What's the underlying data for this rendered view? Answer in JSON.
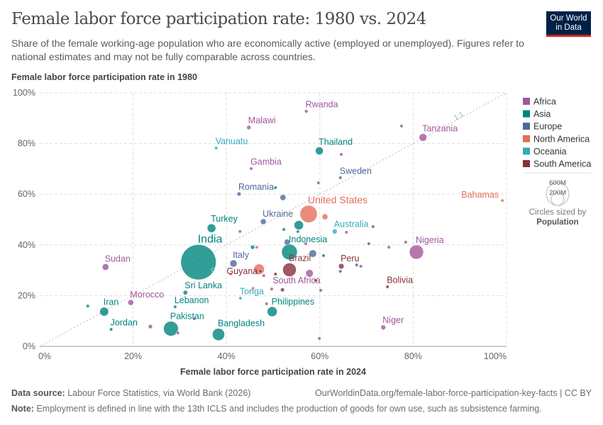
{
  "header": {
    "title": "Female labor force participation rate: 1980 vs. 2024",
    "subtitle": "Share of the female working-age population who are economically active (employed or unemployed). Figures refer to national estimates and may not be fully comparable across countries.",
    "logo": "Our World in Data"
  },
  "footer": {
    "source_label": "Data source:",
    "source": "Labour Force Statistics, via World Bank (2026)",
    "url": "OurWorldinData.org/female-labor-force-participation-key-facts | CC BY",
    "note_label": "Note:",
    "note": "Employment is defined in line with the 13th ICLS and includes the production of goods for own use, such as subsistence farming."
  },
  "chart_data": {
    "type": "scatter",
    "xlabel": "Female labor force participation rate in 2024",
    "ylabel": "Female labor force participation rate in 1980",
    "xlim": [
      0,
      100
    ],
    "ylim": [
      0,
      100
    ],
    "x_ticks": [
      "0%",
      "20%",
      "40%",
      "60%",
      "80%",
      "100%"
    ],
    "y_ticks": [
      "0%",
      "20%",
      "40%",
      "60%",
      "80%",
      "100%"
    ],
    "grid": true,
    "reference_line": "1:1",
    "legend_position": "right",
    "size_legend": {
      "title": "Circles sized by",
      "variable": "Population",
      "labels": [
        "600M",
        "200M"
      ]
    },
    "continents": [
      {
        "name": "Africa",
        "color": "#a2559c"
      },
      {
        "name": "Asia",
        "color": "#00847e"
      },
      {
        "name": "Europe",
        "color": "#4c6a9c"
      },
      {
        "name": "North America",
        "color": "#e56e5a"
      },
      {
        "name": "Oceania",
        "color": "#38aaba"
      },
      {
        "name": "South America",
        "color": "#883039"
      }
    ],
    "points": [
      {
        "name": "India",
        "continent": "Asia",
        "x": 34.0,
        "y": 33.2,
        "pop": 1450
      },
      {
        "name": "Bangladesh",
        "continent": "Asia",
        "x": 38.3,
        "y": 4.7,
        "pop": 173
      },
      {
        "name": "Pakistan",
        "continent": "Asia",
        "x": 28.1,
        "y": 7.0,
        "pop": 251
      },
      {
        "name": "Iran",
        "continent": "Asia",
        "x": 13.8,
        "y": 13.7,
        "pop": 91
      },
      {
        "name": "Jordan",
        "continent": "Asia",
        "x": 15.3,
        "y": 6.7,
        "pop": 11
      },
      {
        "name": "Sudan",
        "continent": "Africa",
        "x": 14.1,
        "y": 31.3,
        "pop": 50
      },
      {
        "name": "Morocco",
        "continent": "Africa",
        "x": 19.5,
        "y": 17.3,
        "pop": 38
      },
      {
        "name": "Lebanon",
        "continent": "Asia",
        "x": 29.0,
        "y": 15.6,
        "pop": 6
      },
      {
        "name": "Sri Lanka",
        "continent": "Asia",
        "x": 31.2,
        "y": 21.2,
        "pop": 23
      },
      {
        "name": "Turkey",
        "continent": "Asia",
        "x": 36.8,
        "y": 46.6,
        "pop": 87
      },
      {
        "name": "Italy",
        "continent": "Europe",
        "x": 41.5,
        "y": 32.7,
        "pop": 59
      },
      {
        "name": "Guyana",
        "continent": "South America",
        "x": 47.3,
        "y": 29.6,
        "pop": 1
      },
      {
        "name": "Tonga",
        "continent": "Oceania",
        "x": 43.0,
        "y": 19.0,
        "pop": 1
      },
      {
        "name": "Ukraine",
        "continent": "Europe",
        "x": 47.9,
        "y": 49.2,
        "pop": 38
      },
      {
        "name": "Romania",
        "continent": "Europe",
        "x": 42.7,
        "y": 60.1,
        "pop": 19
      },
      {
        "name": "Malawi",
        "continent": "Africa",
        "x": 44.8,
        "y": 86.3,
        "pop": 21
      },
      {
        "name": "Vanuatu",
        "continent": "Oceania",
        "x": 37.8,
        "y": 78.2,
        "pop": 1
      },
      {
        "name": "Gambia",
        "continent": "Africa",
        "x": 45.3,
        "y": 70.1,
        "pop": 3
      },
      {
        "name": "Rwanda",
        "continent": "Africa",
        "x": 57.1,
        "y": 92.7,
        "pop": 14
      },
      {
        "name": "Thailand",
        "continent": "Asia",
        "x": 59.9,
        "y": 77.1,
        "pop": 72
      },
      {
        "name": "Sweden",
        "continent": "Europe",
        "x": 64.4,
        "y": 66.5,
        "pop": 10
      },
      {
        "name": "Tanzania",
        "continent": "Africa",
        "x": 82.1,
        "y": 82.4,
        "pop": 68
      },
      {
        "name": "Bahamas",
        "continent": "North America",
        "x": 99.1,
        "y": 57.5,
        "pop": 1
      },
      {
        "name": "United States",
        "continent": "North America",
        "x": 57.6,
        "y": 52.2,
        "pop": 345
      },
      {
        "name": "Australia",
        "continent": "Oceania",
        "x": 63.2,
        "y": 45.3,
        "pop": 27
      },
      {
        "name": "Indonesia",
        "continent": "Asia",
        "x": 53.5,
        "y": 37.2,
        "pop": 283
      },
      {
        "name": "Brazil",
        "continent": "South America",
        "x": 53.5,
        "y": 30.2,
        "pop": 212
      },
      {
        "name": "Peru",
        "continent": "South America",
        "x": 64.6,
        "y": 31.6,
        "pop": 34
      },
      {
        "name": "South Africa",
        "continent": "Africa",
        "x": 57.8,
        "y": 28.8,
        "pop": 64
      },
      {
        "name": "Philippines",
        "continent": "Asia",
        "x": 49.8,
        "y": 13.7,
        "pop": 115
      },
      {
        "name": "Bolivia",
        "continent": "South America",
        "x": 74.5,
        "y": 23.5,
        "pop": 12
      },
      {
        "name": "Nigeria",
        "continent": "Africa",
        "x": 80.7,
        "y": 37.2,
        "pop": 232
      },
      {
        "name": "Niger",
        "continent": "Africa",
        "x": 73.6,
        "y": 7.5,
        "pop": 27
      },
      {
        "name": "",
        "continent": "Asia",
        "x": 55.5,
        "y": 47.8,
        "pop": 100
      },
      {
        "name": "",
        "continent": "Africa",
        "x": 77.5,
        "y": 86.9,
        "pop": 4
      },
      {
        "name": "",
        "continent": "Africa",
        "x": 64.6,
        "y": 75.7,
        "pop": 4
      },
      {
        "name": "",
        "continent": "Africa",
        "x": 59.7,
        "y": 64.5,
        "pop": 3
      },
      {
        "name": "",
        "continent": "Asia",
        "x": 50.5,
        "y": 62.6,
        "pop": 3
      },
      {
        "name": "",
        "continent": "Europe",
        "x": 52.1,
        "y": 58.7,
        "pop": 40
      },
      {
        "name": "",
        "continent": "North America",
        "x": 61.1,
        "y": 51.1,
        "pop": 40
      },
      {
        "name": "",
        "continent": "Europe",
        "x": 71.4,
        "y": 47.2,
        "pop": 5
      },
      {
        "name": "",
        "continent": "Africa",
        "x": 65.7,
        "y": 45.0,
        "pop": 5
      },
      {
        "name": "",
        "continent": "Europe",
        "x": 55.3,
        "y": 45.3,
        "pop": 10
      },
      {
        "name": "",
        "continent": "Asia",
        "x": 52.3,
        "y": 46.1,
        "pop": 3
      },
      {
        "name": "",
        "continent": "Africa",
        "x": 42.9,
        "y": 45.3,
        "pop": 3
      },
      {
        "name": "",
        "continent": "Asia",
        "x": 45.6,
        "y": 39.1,
        "pop": 20
      },
      {
        "name": "",
        "continent": "North America",
        "x": 46.5,
        "y": 39.1,
        "pop": 3
      },
      {
        "name": "",
        "continent": "Europe",
        "x": 53.0,
        "y": 41.1,
        "pop": 40
      },
      {
        "name": "",
        "continent": "Africa",
        "x": 57.0,
        "y": 40.5,
        "pop": 4
      },
      {
        "name": "",
        "continent": "Europe",
        "x": 58.5,
        "y": 36.6,
        "pop": 65
      },
      {
        "name": "",
        "continent": "Asia",
        "x": 60.8,
        "y": 35.8,
        "pop": 4
      },
      {
        "name": "",
        "continent": "Europe",
        "x": 67.9,
        "y": 32.1,
        "pop": 4
      },
      {
        "name": "",
        "continent": "Europe",
        "x": 64.4,
        "y": 29.6,
        "pop": 6
      },
      {
        "name": "",
        "continent": "Africa",
        "x": 68.8,
        "y": 31.6,
        "pop": 4
      },
      {
        "name": "",
        "continent": "Europe",
        "x": 70.5,
        "y": 40.5,
        "pop": 3
      },
      {
        "name": "",
        "continent": "Africa",
        "x": 74.8,
        "y": 39.1,
        "pop": 3
      },
      {
        "name": "",
        "continent": "Africa",
        "x": 78.4,
        "y": 41.1,
        "pop": 3
      },
      {
        "name": "",
        "continent": "North America",
        "x": 47.0,
        "y": 30.4,
        "pop": 130
      },
      {
        "name": "",
        "continent": "South America",
        "x": 50.5,
        "y": 28.5,
        "pop": 10
      },
      {
        "name": "",
        "continent": "North America",
        "x": 40.9,
        "y": 28.5,
        "pop": 3
      },
      {
        "name": "",
        "continent": "Oceania",
        "x": 37.1,
        "y": 30.2,
        "pop": 2
      },
      {
        "name": "",
        "continent": "Africa",
        "x": 48.0,
        "y": 27.9,
        "pop": 5
      },
      {
        "name": "",
        "continent": "North America",
        "x": 45.7,
        "y": 22.9,
        "pop": 3
      },
      {
        "name": "",
        "continent": "Africa",
        "x": 49.7,
        "y": 22.6,
        "pop": 3
      },
      {
        "name": "",
        "continent": "South America",
        "x": 52.0,
        "y": 22.3,
        "pop": 18
      },
      {
        "name": "",
        "continent": "South America",
        "x": 59.1,
        "y": 26.0,
        "pop": 4
      },
      {
        "name": "",
        "continent": "Europe",
        "x": 60.2,
        "y": 22.1,
        "pop": 3
      },
      {
        "name": "",
        "continent": "Africa",
        "x": 48.6,
        "y": 16.8,
        "pop": 3
      },
      {
        "name": "",
        "continent": "Africa",
        "x": 33.1,
        "y": 10.9,
        "pop": 3
      },
      {
        "name": "",
        "continent": "Africa",
        "x": 29.6,
        "y": 5.3,
        "pop": 3
      },
      {
        "name": "",
        "continent": "Africa",
        "x": 23.7,
        "y": 7.8,
        "pop": 20
      },
      {
        "name": "",
        "continent": "Africa",
        "x": 59.9,
        "y": 3.1,
        "pop": 3
      },
      {
        "name": "",
        "continent": "Asia",
        "x": 10.3,
        "y": 15.9,
        "pop": 3
      }
    ]
  }
}
